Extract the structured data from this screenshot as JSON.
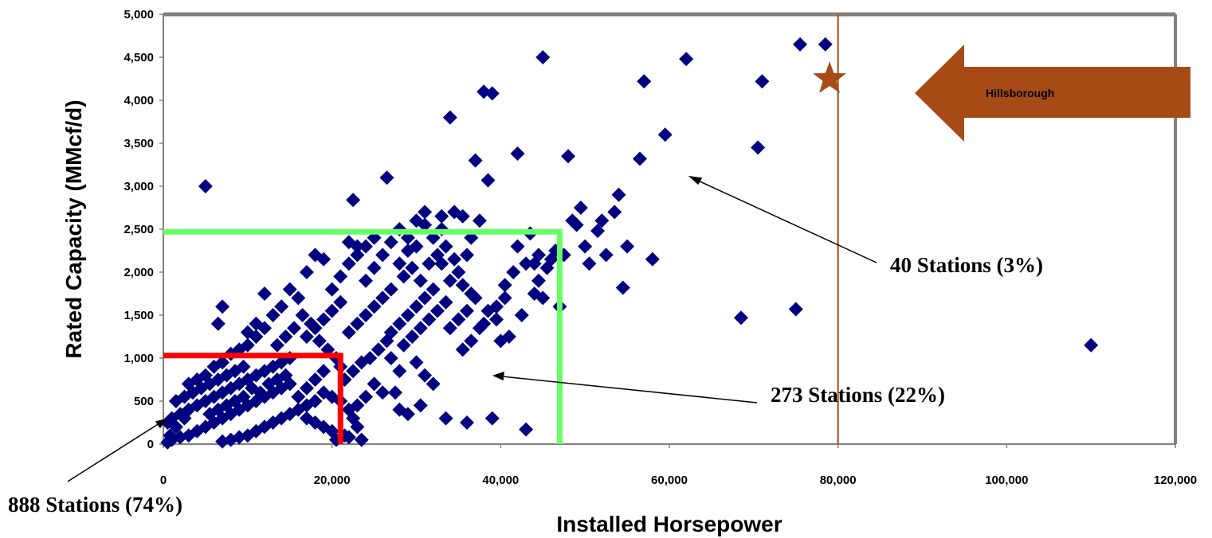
{
  "chart_data": {
    "type": "scatter",
    "xlabel": "Installed Horsepower",
    "ylabel": "Rated Capacity (MMcf/d)",
    "xlim": [
      0,
      120000
    ],
    "ylim": [
      0,
      5000
    ],
    "x_ticks": [
      "0",
      "20,000",
      "40,000",
      "60,000",
      "80,000",
      "100,000",
      "120,000"
    ],
    "y_ticks": [
      "0",
      "500",
      "1,000",
      "1,500",
      "2,000",
      "2,500",
      "3,000",
      "3,500",
      "4,000",
      "4,500",
      "5,000"
    ],
    "series_color": "#000080",
    "points": [
      [
        110000,
        1150
      ],
      [
        75000,
        1570
      ],
      [
        68500,
        1470
      ],
      [
        78500,
        4650
      ],
      [
        75500,
        4650
      ],
      [
        71000,
        4220
      ],
      [
        70500,
        3450
      ],
      [
        62000,
        4480
      ],
      [
        59500,
        3600
      ],
      [
        57000,
        4220
      ],
      [
        56500,
        3320
      ],
      [
        58000,
        2150
      ],
      [
        54500,
        1820
      ],
      [
        45000,
        4500
      ],
      [
        48000,
        3350
      ],
      [
        42000,
        3380
      ],
      [
        38000,
        4100
      ],
      [
        39000,
        4080
      ],
      [
        34000,
        3800
      ],
      [
        37000,
        3300
      ],
      [
        38500,
        3070
      ],
      [
        26500,
        3100
      ],
      [
        22500,
        2840
      ],
      [
        5000,
        3000
      ],
      [
        54000,
        2900
      ],
      [
        53500,
        2700
      ],
      [
        52000,
        2600
      ],
      [
        51500,
        2480
      ],
      [
        50000,
        2300
      ],
      [
        49500,
        2750
      ],
      [
        49000,
        2550
      ],
      [
        48500,
        2600
      ],
      [
        50500,
        2100
      ],
      [
        52500,
        2200
      ],
      [
        55000,
        2300
      ],
      [
        46000,
        2150
      ],
      [
        45500,
        2050
      ],
      [
        44500,
        2200
      ],
      [
        43000,
        2100
      ],
      [
        41500,
        2000
      ],
      [
        40500,
        1850
      ],
      [
        44000,
        1750
      ],
      [
        47000,
        1600
      ],
      [
        42500,
        1500
      ],
      [
        41000,
        1250
      ],
      [
        40000,
        1200
      ],
      [
        37500,
        2600
      ],
      [
        36500,
        2400
      ],
      [
        35500,
        2650
      ],
      [
        34500,
        2700
      ],
      [
        33000,
        2500
      ],
      [
        32000,
        2400
      ],
      [
        31000,
        2550
      ],
      [
        30000,
        2300
      ],
      [
        29000,
        2250
      ],
      [
        28000,
        2100
      ],
      [
        36000,
        2200
      ],
      [
        35000,
        2000
      ],
      [
        34000,
        1900
      ],
      [
        33000,
        2100
      ],
      [
        32000,
        1800
      ],
      [
        31000,
        1700
      ],
      [
        30000,
        1600
      ],
      [
        29000,
        1500
      ],
      [
        28000,
        1400
      ],
      [
        27000,
        1300
      ],
      [
        37000,
        1700
      ],
      [
        36000,
        1550
      ],
      [
        35000,
        1450
      ],
      [
        34000,
        1350
      ],
      [
        33500,
        1650
      ],
      [
        32500,
        1550
      ],
      [
        31500,
        1450
      ],
      [
        30500,
        1350
      ],
      [
        29500,
        1250
      ],
      [
        28500,
        1150
      ],
      [
        38500,
        1550
      ],
      [
        39500,
        1600
      ],
      [
        37500,
        1350
      ],
      [
        36500,
        1200
      ],
      [
        35500,
        1100
      ],
      [
        30000,
        950
      ],
      [
        31000,
        800
      ],
      [
        32000,
        700
      ],
      [
        28000,
        850
      ],
      [
        27000,
        1000
      ],
      [
        26000,
        2200
      ],
      [
        25000,
        2050
      ],
      [
        24000,
        1900
      ],
      [
        23000,
        2300
      ],
      [
        22000,
        2100
      ],
      [
        21000,
        1950
      ],
      [
        20000,
        1800
      ],
      [
        19000,
        2150
      ],
      [
        18000,
        2200
      ],
      [
        17000,
        2000
      ],
      [
        26000,
        1700
      ],
      [
        25000,
        1600
      ],
      [
        24000,
        1500
      ],
      [
        23000,
        1400
      ],
      [
        22000,
        1300
      ],
      [
        21000,
        1650
      ],
      [
        20000,
        1550
      ],
      [
        19000,
        1450
      ],
      [
        18000,
        1350
      ],
      [
        17000,
        1250
      ],
      [
        26500,
        1200
      ],
      [
        25500,
        1100
      ],
      [
        24500,
        1000
      ],
      [
        23500,
        950
      ],
      [
        22500,
        850
      ],
      [
        21500,
        750
      ],
      [
        25000,
        700
      ],
      [
        26000,
        600
      ],
      [
        24000,
        550
      ],
      [
        23000,
        450
      ],
      [
        16000,
        1700
      ],
      [
        15000,
        1800
      ],
      [
        14000,
        1600
      ],
      [
        13000,
        1500
      ],
      [
        12000,
        1750
      ],
      [
        11000,
        1400
      ],
      [
        10000,
        1300
      ],
      [
        15500,
        1350
      ],
      [
        14500,
        1250
      ],
      [
        13500,
        1150
      ],
      [
        16500,
        1500
      ],
      [
        17500,
        1400
      ],
      [
        18500,
        1200
      ],
      [
        19500,
        1100
      ],
      [
        20500,
        1000
      ],
      [
        21000,
        900
      ],
      [
        19000,
        850
      ],
      [
        18000,
        750
      ],
      [
        17000,
        650
      ],
      [
        16000,
        550
      ],
      [
        12000,
        1350
      ],
      [
        11000,
        1250
      ],
      [
        10000,
        1150
      ],
      [
        9000,
        1100
      ],
      [
        8000,
        1050
      ],
      [
        7000,
        950
      ],
      [
        6000,
        900
      ],
      [
        5000,
        800
      ],
      [
        4000,
        750
      ],
      [
        3000,
        700
      ],
      [
        6500,
        1400
      ],
      [
        7000,
        1600
      ],
      [
        15000,
        1000
      ],
      [
        14000,
        950
      ],
      [
        13000,
        900
      ],
      [
        12000,
        850
      ],
      [
        11000,
        800
      ],
      [
        10000,
        750
      ],
      [
        9000,
        700
      ],
      [
        8000,
        650
      ],
      [
        7000,
        600
      ],
      [
        6000,
        550
      ],
      [
        5000,
        500
      ],
      [
        4000,
        450
      ],
      [
        3000,
        400
      ],
      [
        2000,
        350
      ],
      [
        1000,
        300
      ],
      [
        500,
        250
      ],
      [
        1500,
        500
      ],
      [
        2500,
        550
      ],
      [
        15000,
        700
      ],
      [
        14000,
        650
      ],
      [
        13000,
        600
      ],
      [
        12000,
        550
      ],
      [
        11000,
        500
      ],
      [
        10000,
        450
      ],
      [
        9000,
        400
      ],
      [
        8000,
        350
      ],
      [
        7000,
        300
      ],
      [
        6000,
        250
      ],
      [
        5000,
        200
      ],
      [
        4000,
        150
      ],
      [
        3000,
        100
      ],
      [
        2000,
        80
      ],
      [
        1000,
        50
      ],
      [
        500,
        20
      ],
      [
        16000,
        400
      ],
      [
        15000,
        350
      ],
      [
        14000,
        300
      ],
      [
        13000,
        250
      ],
      [
        12000,
        200
      ],
      [
        11000,
        150
      ],
      [
        10000,
        100
      ],
      [
        9000,
        80
      ],
      [
        8000,
        50
      ],
      [
        7000,
        30
      ],
      [
        17000,
        300
      ],
      [
        18000,
        250
      ],
      [
        19000,
        200
      ],
      [
        20000,
        150
      ],
      [
        9500,
        900
      ],
      [
        8500,
        850
      ],
      [
        7500,
        800
      ],
      [
        6500,
        750
      ],
      [
        5500,
        700
      ],
      [
        4500,
        650
      ],
      [
        3500,
        600
      ],
      [
        2500,
        300
      ],
      [
        1500,
        200
      ],
      [
        800,
        100
      ],
      [
        10500,
        650
      ],
      [
        11500,
        600
      ],
      [
        12500,
        700
      ],
      [
        13500,
        750
      ],
      [
        14500,
        800
      ],
      [
        9500,
        550
      ],
      [
        8500,
        500
      ],
      [
        7500,
        450
      ],
      [
        6500,
        400
      ],
      [
        5500,
        350
      ],
      [
        19000,
        600
      ],
      [
        20000,
        550
      ],
      [
        18000,
        500
      ],
      [
        17000,
        450
      ],
      [
        21000,
        500
      ],
      [
        22000,
        400
      ],
      [
        22500,
        300
      ],
      [
        23000,
        200
      ],
      [
        21500,
        100
      ],
      [
        20500,
        50
      ],
      [
        27500,
        600
      ],
      [
        28000,
        400
      ],
      [
        29000,
        350
      ],
      [
        30500,
        450
      ],
      [
        33500,
        300
      ],
      [
        36000,
        250
      ],
      [
        39000,
        300
      ],
      [
        43000,
        170
      ],
      [
        22000,
        80
      ],
      [
        23500,
        50
      ],
      [
        27000,
        1800
      ],
      [
        28500,
        1950
      ],
      [
        29500,
        2050
      ],
      [
        30500,
        1900
      ],
      [
        31500,
        2100
      ],
      [
        32500,
        2200
      ],
      [
        33500,
        2300
      ],
      [
        34500,
        2150
      ],
      [
        35500,
        1850
      ],
      [
        36500,
        1750
      ],
      [
        30000,
        2600
      ],
      [
        31000,
        2700
      ],
      [
        33000,
        2650
      ],
      [
        29000,
        2400
      ],
      [
        28000,
        2500
      ],
      [
        27000,
        2350
      ],
      [
        25000,
        2400
      ],
      [
        24000,
        2300
      ],
      [
        23000,
        2200
      ],
      [
        22000,
        2350
      ],
      [
        42000,
        2300
      ],
      [
        43500,
        2450
      ],
      [
        44500,
        1900
      ],
      [
        45000,
        1700
      ],
      [
        46500,
        2250
      ],
      [
        47500,
        2200
      ],
      [
        44000,
        2100
      ],
      [
        40500,
        1700
      ],
      [
        39500,
        1450
      ],
      [
        38000,
        1400
      ]
    ],
    "regions": [
      {
        "label": "888 Stations (74%)",
        "x_max": 21000,
        "y_max": 1030,
        "color": "#ff0000"
      },
      {
        "label": "273 Stations (22%)",
        "x_max": 47000,
        "y_max": 2470,
        "color": "#66ff66"
      },
      {
        "label": "40 Stations (3%)"
      }
    ],
    "marker": {
      "x": 79000,
      "y": 4250,
      "color": "#a64b16",
      "vline_x": 80000
    },
    "callout": {
      "label": "Hillsborough",
      "color": "#a64b16"
    }
  }
}
